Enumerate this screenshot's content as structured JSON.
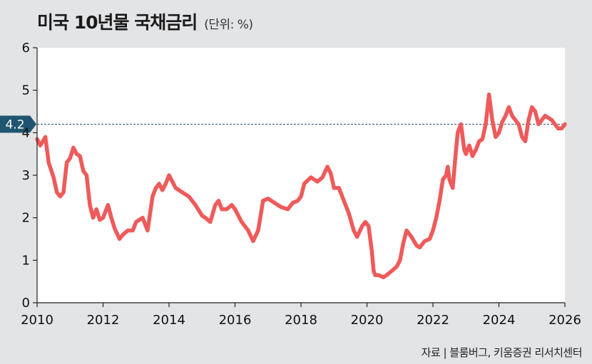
{
  "header": {
    "title": "미국 10년물 국채금리",
    "unit": "(단위: %)"
  },
  "footer": {
    "source": "자료 | 블룸버그, 키움증권 리서치센터"
  },
  "colors": {
    "background": "#e3e4e6",
    "plot_background": "#ffffff",
    "line": "#ef5a5a",
    "reference_line": "#1f4e78",
    "reference_label_bg": "#1f5570"
  },
  "chart_data": {
    "type": "line",
    "title": "미국 10년물 국채금리",
    "xlabel": "",
    "ylabel": "",
    "xlim": [
      2010,
      2026
    ],
    "ylim": [
      0,
      6
    ],
    "x_ticks": [
      "2010",
      "2012",
      "2014",
      "2016",
      "2018",
      "2020",
      "2022",
      "2024",
      "2026"
    ],
    "y_ticks": [
      "0",
      "1",
      "2",
      "3",
      "4",
      "5",
      "6"
    ],
    "grid": false,
    "reference_line": {
      "y": 4.2,
      "label": "4.2",
      "style": "dashed"
    },
    "series": [
      {
        "x": [
          2010.0,
          2010.1,
          2010.25,
          2010.35,
          2010.5,
          2010.6,
          2010.7,
          2010.8,
          2010.9,
          2011.0,
          2011.1,
          2011.2,
          2011.3,
          2011.4,
          2011.5,
          2011.6,
          2011.7,
          2011.8,
          2011.9,
          2012.0,
          2012.15,
          2012.25,
          2012.35,
          2012.5,
          2012.6,
          2012.75,
          2012.9,
          2013.0,
          2013.2,
          2013.35,
          2013.5,
          2013.6,
          2013.7,
          2013.8,
          2013.9,
          2014.0,
          2014.2,
          2014.4,
          2014.6,
          2014.8,
          2015.0,
          2015.1,
          2015.25,
          2015.4,
          2015.5,
          2015.6,
          2015.75,
          2015.9,
          2016.0,
          2016.2,
          2016.4,
          2016.55,
          2016.7,
          2016.85,
          2017.0,
          2017.2,
          2017.4,
          2017.6,
          2017.75,
          2017.9,
          2018.0,
          2018.1,
          2018.3,
          2018.5,
          2018.65,
          2018.8,
          2018.9,
          2019.0,
          2019.15,
          2019.3,
          2019.45,
          2019.6,
          2019.7,
          2019.85,
          2019.95,
          2020.05,
          2020.15,
          2020.2,
          2020.25,
          2020.35,
          2020.5,
          2020.6,
          2020.75,
          2020.9,
          2021.0,
          2021.1,
          2021.2,
          2021.35,
          2021.5,
          2021.6,
          2021.75,
          2021.9,
          2022.0,
          2022.1,
          2022.2,
          2022.3,
          2022.4,
          2022.45,
          2022.5,
          2022.6,
          2022.7,
          2022.75,
          2022.85,
          2022.95,
          2023.0,
          2023.1,
          2023.2,
          2023.3,
          2023.4,
          2023.5,
          2023.6,
          2023.7,
          2023.8,
          2023.9,
          2024.0,
          2024.1,
          2024.2,
          2024.3,
          2024.4,
          2024.5,
          2024.6,
          2024.7,
          2024.8,
          2024.9,
          2025.0,
          2025.1,
          2025.2,
          2025.3,
          2025.4,
          2025.5,
          2025.6,
          2025.7,
          2025.8,
          2025.9,
          2026.0
        ],
        "values": [
          3.85,
          3.7,
          3.9,
          3.3,
          2.95,
          2.6,
          2.5,
          2.6,
          3.3,
          3.4,
          3.65,
          3.5,
          3.45,
          3.1,
          3.0,
          2.3,
          2.0,
          2.2,
          1.95,
          2.0,
          2.3,
          2.0,
          1.75,
          1.5,
          1.6,
          1.7,
          1.7,
          1.9,
          2.0,
          1.7,
          2.5,
          2.7,
          2.8,
          2.65,
          2.8,
          3.0,
          2.7,
          2.6,
          2.5,
          2.3,
          2.05,
          2.0,
          1.9,
          2.3,
          2.4,
          2.2,
          2.2,
          2.3,
          2.2,
          1.9,
          1.7,
          1.45,
          1.7,
          2.4,
          2.45,
          2.35,
          2.25,
          2.2,
          2.35,
          2.4,
          2.5,
          2.8,
          2.95,
          2.85,
          2.95,
          3.2,
          3.05,
          2.7,
          2.7,
          2.4,
          2.1,
          1.7,
          1.55,
          1.8,
          1.9,
          1.8,
          1.2,
          0.75,
          0.65,
          0.65,
          0.6,
          0.65,
          0.75,
          0.85,
          1.0,
          1.4,
          1.7,
          1.55,
          1.35,
          1.3,
          1.45,
          1.5,
          1.7,
          2.0,
          2.4,
          2.9,
          3.0,
          3.2,
          2.9,
          2.7,
          3.6,
          4.0,
          4.2,
          3.6,
          3.5,
          3.7,
          3.45,
          3.6,
          3.8,
          3.85,
          4.2,
          4.9,
          4.3,
          3.9,
          4.0,
          4.25,
          4.4,
          4.6,
          4.4,
          4.3,
          4.2,
          3.9,
          3.8,
          4.3,
          4.6,
          4.5,
          4.2,
          4.3,
          4.4,
          4.35,
          4.3,
          4.2,
          4.1,
          4.1,
          4.2
        ]
      }
    ]
  }
}
